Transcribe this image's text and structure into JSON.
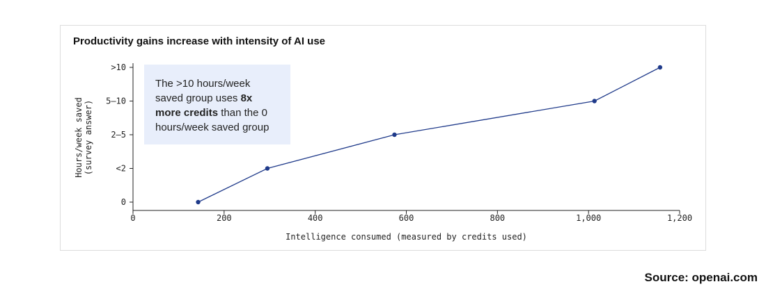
{
  "chart_data": {
    "type": "line",
    "title": "Productivity gains increase with intensity of AI use",
    "xlabel": "Intelligence consumed (measured by credits used)",
    "ylabel_lines": [
      "Hours/week saved",
      "(survey answer)"
    ],
    "xlim": [
      0,
      1200
    ],
    "x_ticks": [
      0,
      200,
      400,
      600,
      800,
      1000,
      1200
    ],
    "x_tick_labels": [
      "0",
      "200",
      "400",
      "600",
      "800",
      "1,000",
      "1,200"
    ],
    "y_categories": [
      "0",
      "<2",
      "2–5",
      "5–10",
      ">10"
    ],
    "grid": false,
    "series": [
      {
        "x": [
          143,
          295,
          574,
          1013,
          1157
        ],
        "y": [
          "0",
          "<2",
          "2–5",
          "5–10",
          ">10"
        ]
      }
    ],
    "color": "#1f3a8a"
  },
  "annotation": {
    "part1": "The >10 hours/week saved group uses ",
    "bold": "8x more credits",
    "part2": " than the 0 hours/week saved group"
  },
  "source": "Source: openai.com"
}
